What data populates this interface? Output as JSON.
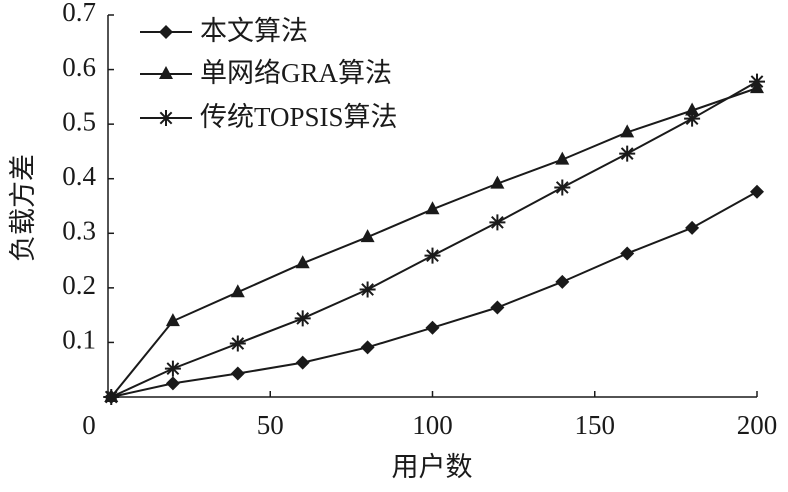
{
  "chart_data": {
    "type": "line",
    "x_label": "用户数",
    "y_label": "负载方差",
    "xlim": [
      0,
      200
    ],
    "xticks": [
      0,
      50,
      100,
      150,
      200
    ],
    "ylim": [
      0,
      0.7
    ],
    "yticks": [
      0.1,
      0.2,
      0.3,
      0.4,
      0.5,
      0.6,
      0.7
    ],
    "legend": "upper left",
    "series": [
      {
        "name": "本文算法",
        "color": "#1a1a1a",
        "marker": "diamond",
        "x": [
          1,
          20,
          40,
          60,
          80,
          100,
          120,
          140,
          160,
          180,
          200
        ],
        "values": [
          0,
          0.025,
          0.043,
          0.063,
          0.091,
          0.127,
          0.164,
          0.211,
          0.263,
          0.31,
          0.376
        ]
      },
      {
        "name": "单网络GRA算法",
        "color": "#1a1a1a",
        "marker": "triangle",
        "x": [
          1,
          20,
          40,
          60,
          80,
          100,
          120,
          140,
          160,
          180,
          200
        ],
        "values": [
          0,
          0.139,
          0.192,
          0.245,
          0.293,
          0.344,
          0.391,
          0.435,
          0.485,
          0.525,
          0.566
        ]
      },
      {
        "name": "传统TOPSIS算法",
        "color": "#1a1a1a",
        "marker": "star",
        "x": [
          1,
          20,
          40,
          60,
          80,
          100,
          120,
          140,
          160,
          180,
          200
        ],
        "values": [
          0,
          0.052,
          0.098,
          0.144,
          0.197,
          0.259,
          0.32,
          0.384,
          0.446,
          0.51,
          0.578
        ]
      }
    ]
  }
}
